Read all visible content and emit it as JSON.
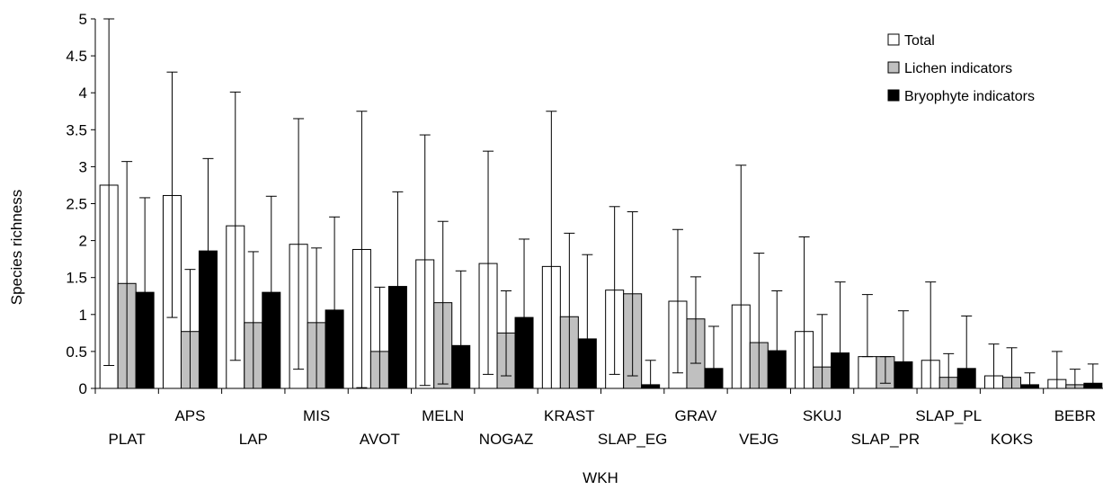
{
  "chart_data": {
    "type": "bar",
    "xlabel": "WKH",
    "ylabel": "Species richness",
    "ylim": [
      0,
      5
    ],
    "yticks": [
      "0",
      "0.5",
      "1",
      "1.5",
      "2",
      "2.5",
      "3",
      "3.5",
      "4",
      "4.5",
      "5"
    ],
    "grid": false,
    "legend_position": "top-right",
    "categories": [
      "PLAT",
      "APS",
      "LAP",
      "MIS",
      "AVOT",
      "MELN",
      "NOGAZ",
      "KRAST",
      "SLAP_EG",
      "GRAV",
      "VEJG",
      "SKUJ",
      "SLAP_PR",
      "SLAP_PL",
      "KOKS",
      "BEBR"
    ],
    "series": [
      {
        "name": "Total",
        "color": "#ffffff",
        "values": [
          2.75,
          2.61,
          2.2,
          1.95,
          1.88,
          1.74,
          1.69,
          1.65,
          1.33,
          1.18,
          1.13,
          0.77,
          0.43,
          0.38,
          0.17,
          0.12
        ],
        "err_low": [
          0.31,
          0.96,
          0.38,
          0.26,
          0.01,
          0.04,
          0.19,
          0.0,
          0.19,
          0.21,
          0.0,
          0.0,
          0.43,
          0.0,
          0.0,
          0.0
        ],
        "err_high": [
          5.0,
          4.28,
          4.01,
          3.65,
          3.75,
          3.43,
          3.21,
          3.75,
          2.46,
          2.15,
          3.02,
          2.05,
          1.27,
          1.44,
          0.6,
          0.5
        ]
      },
      {
        "name": "Lichen indicators",
        "color": "#c0c0c0",
        "values": [
          1.42,
          0.77,
          0.89,
          0.89,
          0.5,
          1.16,
          0.75,
          0.97,
          1.28,
          0.94,
          0.62,
          0.29,
          0.43,
          0.15,
          0.15,
          0.05
        ],
        "err_low": [
          0.0,
          0.0,
          0.0,
          0.0,
          0.0,
          0.06,
          0.17,
          0.0,
          0.17,
          0.34,
          0.0,
          0.0,
          0.07,
          0.0,
          0.0,
          0.0
        ],
        "err_high": [
          3.07,
          1.61,
          1.85,
          1.9,
          1.37,
          2.26,
          1.32,
          2.1,
          2.39,
          1.51,
          1.83,
          1.0,
          0.43,
          0.47,
          0.55,
          0.26
        ]
      },
      {
        "name": "Bryophyte indicators",
        "color": "#000000",
        "values": [
          1.3,
          1.86,
          1.3,
          1.06,
          1.38,
          0.58,
          0.96,
          0.67,
          0.05,
          0.27,
          0.51,
          0.48,
          0.36,
          0.27,
          0.05,
          0.07
        ],
        "err_low": [
          0.0,
          0.0,
          0.0,
          0.0,
          0.0,
          0.0,
          0.0,
          0.0,
          0.0,
          0.0,
          0.0,
          0.0,
          0.0,
          0.0,
          0.0,
          0.0
        ],
        "err_high": [
          2.58,
          3.11,
          2.6,
          2.32,
          2.66,
          1.59,
          2.02,
          1.81,
          0.38,
          0.84,
          1.32,
          1.44,
          1.05,
          0.98,
          0.21,
          0.33
        ]
      }
    ]
  }
}
